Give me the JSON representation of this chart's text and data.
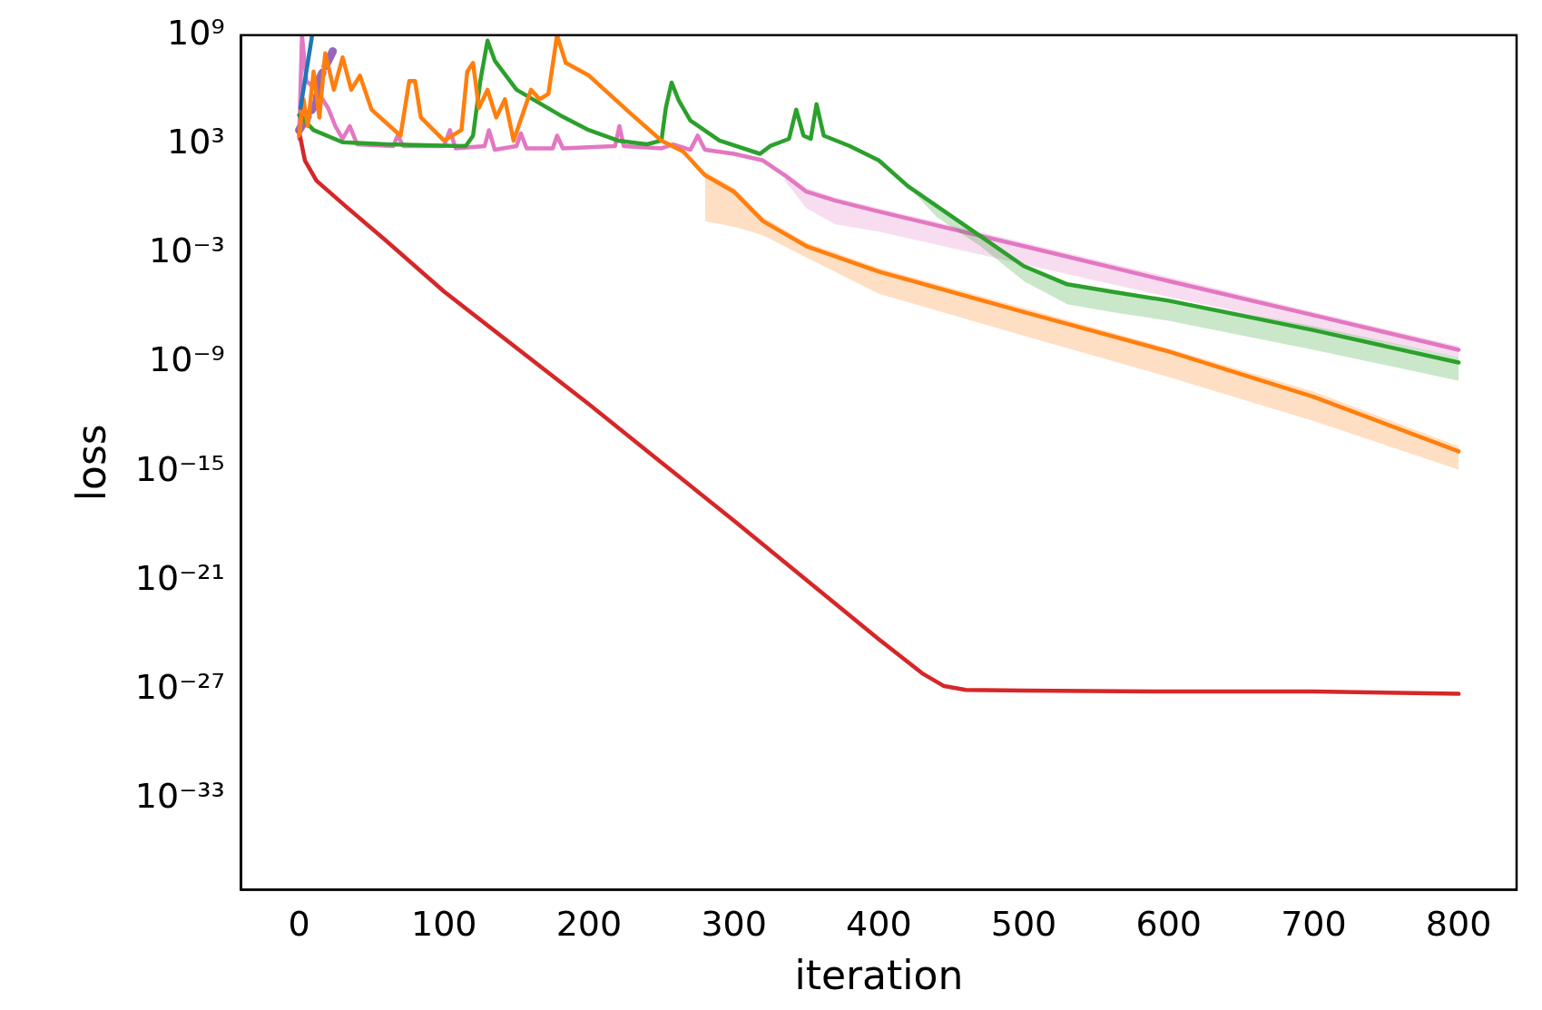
{
  "chart_data": {
    "type": "line",
    "xlabel": "iteration",
    "ylabel": "loss",
    "log": "y",
    "grid": false,
    "legend": false,
    "marker": "none",
    "xlim": [
      -40,
      840
    ],
    "xticks": [
      0,
      100,
      200,
      300,
      400,
      500,
      600,
      700,
      800
    ],
    "ylim": [
      1e-38,
      1000000000.0
    ],
    "yticks": [
      {
        "value": 1000000000.0,
        "label": "10⁹"
      },
      {
        "value": 1000.0,
        "label": "10³"
      },
      {
        "value": 0.001,
        "label": "10⁻³"
      },
      {
        "value": 1e-09,
        "label": "10⁻⁹"
      },
      {
        "value": 1e-15,
        "label": "10⁻¹⁵"
      },
      {
        "value": 1e-21,
        "label": "10⁻²¹"
      },
      {
        "value": 1e-27,
        "label": "10⁻²⁷"
      },
      {
        "value": 1e-33,
        "label": "10⁻³³"
      }
    ],
    "series": [
      {
        "color": "#1f77b4",
        "x": [
          1,
          9
        ],
        "values": [
          100000.0,
          1000000000.0
        ]
      },
      {
        "color": "#ff7f0e",
        "x": [
          0,
          3,
          6,
          10,
          14,
          18,
          24,
          30,
          36,
          42,
          50,
          70,
          76,
          80,
          84,
          100,
          112,
          116,
          120,
          124,
          130,
          136,
          142,
          148,
          160,
          166,
          172,
          178,
          184,
          200,
          230,
          250,
          265,
          280,
          300,
          320,
          350,
          400,
          500,
          600,
          700,
          800
        ],
        "values": [
          3000.0,
          300000.0,
          10000.0,
          10000000.0,
          30000.0,
          100000000.0,
          1000000.0,
          60000000.0,
          1000000.0,
          6000000.0,
          80000.0,
          3000.0,
          3000000.0,
          3000000.0,
          30000.0,
          1600.0,
          6000.0,
          10000000.0,
          30000000.0,
          100000.0,
          1000000.0,
          30000.0,
          300000.0,
          1600.0,
          1000000.0,
          300000.0,
          600000.0,
          1000000000.0,
          30000000.0,
          6000000.0,
          40000.0,
          1600.0,
          400.0,
          20.0,
          2.5,
          0.06,
          0.0025,
          0.0001,
          6e-07,
          4e-09,
          1.3e-11,
          1.3e-14
        ],
        "lower": [
          null,
          null,
          null,
          null,
          null,
          null,
          null,
          null,
          null,
          null,
          null,
          null,
          null,
          null,
          null,
          null,
          null,
          null,
          null,
          null,
          null,
          null,
          null,
          null,
          null,
          null,
          null,
          null,
          null,
          null,
          null,
          null,
          null,
          0.06,
          0.03,
          0.01,
          0.0006,
          6e-06,
          3e-08,
          1.6e-10,
          6e-13,
          1.3e-15
        ],
        "upper": [
          null,
          null,
          null,
          null,
          null,
          null,
          null,
          null,
          null,
          null,
          null,
          null,
          null,
          null,
          null,
          null,
          null,
          null,
          null,
          null,
          null,
          null,
          null,
          null,
          null,
          null,
          null,
          null,
          null,
          null,
          null,
          null,
          null,
          30.0,
          4,
          0.1,
          0.004,
          0.00016,
          1e-06,
          6e-09,
          2.5e-11,
          2.5e-14
        ]
      },
      {
        "color": "#2ca02c",
        "x": [
          0,
          10,
          30,
          60,
          115,
          120,
          125,
          130,
          135,
          150,
          180,
          200,
          220,
          240,
          250,
          253,
          257,
          262,
          270,
          290,
          318,
          325,
          338,
          343,
          348,
          353,
          357,
          362,
          380,
          400,
          420,
          440,
          470,
          500,
          530,
          560,
          600,
          700,
          800
        ],
        "values": [
          40000.0,
          6000.0,
          1300.0,
          1000.0,
          800.0,
          3000.0,
          3000000.0,
          500000000.0,
          40000000.0,
          1000000.0,
          40000.0,
          6000.0,
          1600.0,
          1000.0,
          1600.0,
          100000.0,
          2500000.0,
          250000.0,
          20000.0,
          1600.0,
          300.0,
          800.0,
          2000.0,
          80000.0,
          3000.0,
          2000.0,
          160000.0,
          3000.0,
          800.0,
          130.0,
          5,
          0.4,
          0.009,
          0.0002,
          2e-05,
          8e-06,
          2.5e-06,
          6e-08,
          1e-09
        ],
        "lower": [
          null,
          null,
          null,
          null,
          null,
          null,
          null,
          null,
          null,
          null,
          null,
          null,
          null,
          null,
          null,
          null,
          null,
          null,
          null,
          null,
          null,
          null,
          null,
          null,
          null,
          null,
          null,
          null,
          null,
          null,
          5,
          0.1,
          0.0025,
          3e-05,
          1.6e-06,
          6e-07,
          2e-07,
          5e-09,
          1e-10
        ],
        "upper": [
          null,
          null,
          null,
          null,
          null,
          null,
          null,
          null,
          null,
          null,
          null,
          null,
          null,
          null,
          null,
          null,
          null,
          null,
          null,
          null,
          null,
          null,
          null,
          null,
          null,
          null,
          null,
          null,
          null,
          null,
          6,
          0.5,
          0.012,
          0.00025,
          2.5e-05,
          1e-05,
          3e-06,
          1e-07,
          2e-09
        ]
      },
      {
        "color": "#d62728",
        "x": [
          0,
          4,
          12,
          32,
          60,
          100,
          200,
          300,
          400,
          430,
          445,
          460,
          500,
          600,
          700,
          800
        ],
        "values": [
          5000.0,
          130.0,
          10.0,
          0.4,
          0.005,
          8e-06,
          5e-12,
          2e-18,
          6e-25,
          8e-27,
          1.6e-27,
          1e-27,
          9e-28,
          8e-28,
          8e-28,
          6e-28
        ]
      },
      {
        "color": "#9467bd",
        "line_style": "dashed",
        "x": [
          0,
          12,
          14,
          25
        ],
        "values": [
          6000.0,
          200000.0,
          4000000.0,
          250000000.0
        ]
      },
      {
        "color": "#e377c2",
        "x": [
          0,
          2,
          5,
          12,
          20,
          25,
          30,
          35,
          40,
          65,
          68,
          72,
          100,
          104,
          108,
          128,
          131,
          135,
          150,
          153,
          157,
          175,
          178,
          182,
          218,
          221,
          224,
          250,
          258,
          270,
          275,
          280,
          300,
          320,
          335,
          350,
          370,
          400,
          500,
          600,
          700,
          800
        ],
        "values": [
          2000.0,
          1000000000.0,
          3000000.0,
          1000000.0,
          100000.0,
          10000.0,
          2000.0,
          10000.0,
          1000.0,
          800.0,
          3000.0,
          800.0,
          800.0,
          6000.0,
          600.0,
          800.0,
          6000.0,
          500.0,
          800.0,
          4000.0,
          600.0,
          600.0,
          3000.0,
          600.0,
          800.0,
          10000.0,
          800.0,
          600.0,
          1000.0,
          500.0,
          3000.0,
          500.0,
          300.0,
          130.0,
          20.0,
          2.5,
          0.8,
          0.2,
          0.0025,
          3e-05,
          4e-07,
          5e-09
        ],
        "lower": [
          null,
          null,
          null,
          null,
          null,
          null,
          null,
          null,
          null,
          null,
          null,
          null,
          null,
          null,
          null,
          null,
          null,
          null,
          null,
          null,
          null,
          null,
          null,
          null,
          null,
          null,
          null,
          null,
          null,
          null,
          null,
          null,
          null,
          null,
          10.0,
          0.3,
          0.04,
          0.016,
          0.00025,
          4e-06,
          8e-08,
          2e-09
        ],
        "upper": [
          null,
          null,
          null,
          null,
          null,
          null,
          null,
          null,
          null,
          null,
          null,
          null,
          null,
          null,
          null,
          null,
          null,
          null,
          null,
          null,
          null,
          null,
          null,
          null,
          null,
          null,
          null,
          null,
          null,
          null,
          null,
          null,
          null,
          null,
          30.0,
          4,
          1.2,
          0.3,
          0.004,
          5e-05,
          6e-07,
          8e-09
        ]
      }
    ]
  }
}
